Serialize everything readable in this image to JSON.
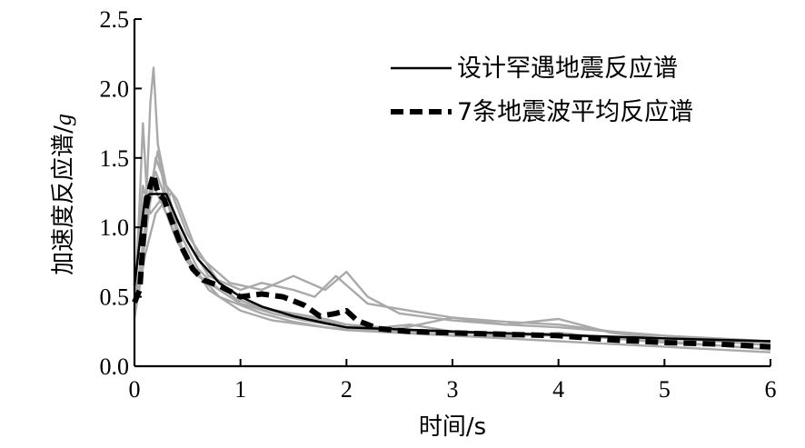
{
  "chart_data": {
    "type": "line",
    "xlabel": "时间/s",
    "ylabel_main": "加速度反应谱/",
    "ylabel_unit": "g",
    "xlim": [
      0,
      6
    ],
    "ylim": [
      0,
      2.5
    ],
    "x_ticks": [
      "0",
      "1",
      "2",
      "3",
      "4",
      "5",
      "6"
    ],
    "y_ticks": [
      "0.0",
      "0.5",
      "1.0",
      "1.5",
      "2.0",
      "2.5"
    ],
    "legend_position": "top-right",
    "grid": false,
    "colors": {
      "design": "#000000",
      "average": "#000000",
      "records": "#a9a9a9"
    },
    "series": [
      {
        "name": "设计罕遇地震反应谱",
        "style": "solid",
        "x": [
          0,
          0.1,
          0.15,
          0.3,
          0.4,
          0.5,
          0.6,
          0.8,
          1.0,
          1.2,
          1.5,
          1.8,
          2.0,
          2.5,
          3.0,
          4.0,
          5.0,
          6.0
        ],
        "y": [
          0.58,
          1.22,
          1.24,
          1.24,
          1.06,
          0.9,
          0.77,
          0.6,
          0.5,
          0.43,
          0.36,
          0.31,
          0.28,
          0.265,
          0.25,
          0.225,
          0.2,
          0.18
        ]
      },
      {
        "name": "7条地震波平均反应谱",
        "style": "dashed",
        "x": [
          0,
          0.05,
          0.1,
          0.15,
          0.18,
          0.22,
          0.28,
          0.35,
          0.45,
          0.55,
          0.65,
          0.8,
          1.0,
          1.2,
          1.4,
          1.6,
          1.75,
          1.9,
          2.0,
          2.1,
          2.3,
          2.6,
          3.0,
          3.5,
          4.0,
          4.5,
          5.0,
          5.5,
          6.0
        ],
        "y": [
          0.46,
          0.55,
          1.1,
          1.3,
          1.38,
          1.25,
          1.2,
          1.05,
          0.85,
          0.7,
          0.62,
          0.58,
          0.5,
          0.52,
          0.5,
          0.44,
          0.36,
          0.38,
          0.4,
          0.33,
          0.27,
          0.25,
          0.24,
          0.23,
          0.22,
          0.19,
          0.17,
          0.16,
          0.14
        ]
      }
    ],
    "records": [
      {
        "x": [
          0,
          0.1,
          0.15,
          0.18,
          0.22,
          0.3,
          0.4,
          0.6,
          0.8,
          1.0,
          1.3,
          1.6,
          2.0,
          2.5,
          3.0,
          4.0,
          5.0,
          6.0
        ],
        "y": [
          0.4,
          1.0,
          1.9,
          2.15,
          1.6,
          1.3,
          1.0,
          0.7,
          0.55,
          0.45,
          0.4,
          0.35,
          0.3,
          0.26,
          0.24,
          0.22,
          0.2,
          0.18
        ]
      },
      {
        "x": [
          0,
          0.05,
          0.08,
          0.12,
          0.2,
          0.3,
          0.5,
          0.7,
          1.0,
          1.2,
          1.5,
          1.7,
          1.9,
          2.2,
          2.6,
          3.0,
          3.5,
          4.0,
          4.5,
          5.0,
          6.0
        ],
        "y": [
          0.4,
          1.2,
          1.75,
          1.2,
          1.4,
          1.2,
          0.9,
          0.65,
          0.55,
          0.6,
          0.55,
          0.5,
          0.65,
          0.45,
          0.4,
          0.35,
          0.32,
          0.3,
          0.25,
          0.22,
          0.17
        ]
      },
      {
        "x": [
          0,
          0.1,
          0.2,
          0.3,
          0.4,
          0.6,
          0.9,
          1.2,
          1.5,
          1.8,
          2.0,
          2.2,
          2.5,
          3.0,
          3.5,
          4.0,
          4.5,
          5.0,
          6.0
        ],
        "y": [
          0.35,
          0.9,
          1.5,
          1.3,
          1.2,
          0.8,
          0.6,
          0.55,
          0.65,
          0.55,
          0.68,
          0.5,
          0.38,
          0.33,
          0.3,
          0.28,
          0.25,
          0.22,
          0.18
        ]
      },
      {
        "x": [
          0,
          0.1,
          0.2,
          0.35,
          0.5,
          0.8,
          1.0,
          1.3,
          1.6,
          2.0,
          2.4,
          3.0,
          3.5,
          4.0,
          4.5,
          5.0,
          6.0
        ],
        "y": [
          0.35,
          0.8,
          1.1,
          1.25,
          0.95,
          0.6,
          0.45,
          0.38,
          0.33,
          0.28,
          0.25,
          0.22,
          0.2,
          0.18,
          0.16,
          0.14,
          0.1
        ]
      },
      {
        "x": [
          0,
          0.12,
          0.22,
          0.3,
          0.45,
          0.7,
          1.0,
          1.3,
          1.6,
          2.0,
          2.5,
          3.0,
          3.5,
          4.0,
          4.5,
          5.0,
          5.5,
          6.0
        ],
        "y": [
          0.38,
          1.15,
          1.55,
          1.2,
          0.85,
          0.55,
          0.4,
          0.33,
          0.3,
          0.26,
          0.24,
          0.22,
          0.21,
          0.24,
          0.2,
          0.17,
          0.15,
          0.12
        ]
      },
      {
        "x": [
          0,
          0.1,
          0.18,
          0.3,
          0.5,
          0.8,
          1.2,
          1.5,
          1.8,
          2.1,
          2.6,
          3.0,
          3.5,
          4.0,
          4.5,
          5.0,
          6.0
        ],
        "y": [
          0.4,
          1.0,
          1.3,
          1.1,
          0.75,
          0.5,
          0.38,
          0.32,
          0.28,
          0.26,
          0.3,
          0.25,
          0.22,
          0.24,
          0.2,
          0.18,
          0.12
        ]
      },
      {
        "x": [
          0,
          0.08,
          0.15,
          0.25,
          0.4,
          0.6,
          0.9,
          1.2,
          1.5,
          1.8,
          2.0,
          2.5,
          3.0,
          3.5,
          4.0,
          4.5,
          5.0,
          5.5,
          6.0
        ],
        "y": [
          0.45,
          1.3,
          1.1,
          1.2,
          0.9,
          0.65,
          0.5,
          0.42,
          0.38,
          0.34,
          0.3,
          0.27,
          0.35,
          0.3,
          0.34,
          0.24,
          0.2,
          0.18,
          0.15
        ]
      }
    ]
  }
}
